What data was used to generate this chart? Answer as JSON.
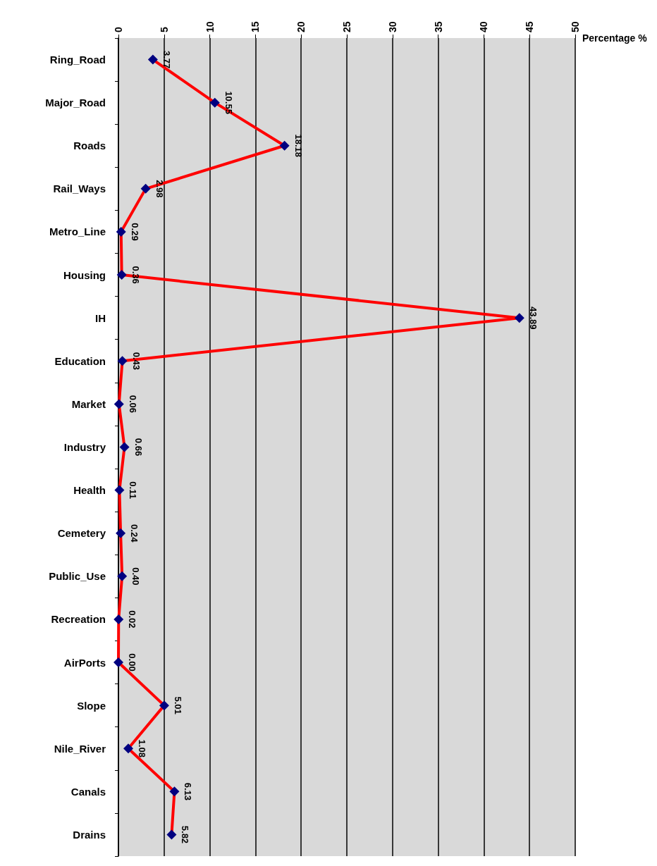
{
  "chart_data": {
    "type": "line",
    "orientation": "horizontal",
    "xlabel": "Percentage %",
    "categories": [
      "Ring_Road",
      "Major_Road",
      "Roads",
      "Rail_Ways",
      "Metro_Line",
      "Housing",
      "IH",
      "Education",
      "Market",
      "Industry",
      "Health",
      "Cemetery",
      "Public_Use",
      "Recreation",
      "AirPorts",
      "Slope",
      "Nile_River",
      "Canals",
      "Drains"
    ],
    "series": [
      {
        "color": "#ff0000",
        "values": [
          3.77,
          10.55,
          18.18,
          2.98,
          0.29,
          0.36,
          43.89,
          0.43,
          0.06,
          0.66,
          0.11,
          0.24,
          0.4,
          0.02,
          0.0,
          5.01,
          1.08,
          6.13,
          5.82
        ],
        "value_labels": [
          "3.77",
          "10.55",
          "18.18",
          "2.98",
          "0.29",
          "0.36",
          "43.89",
          "0.43",
          "0.06",
          "0.66",
          "0.11",
          "0.24",
          "0.40",
          "0.02",
          "0.00",
          "5.01",
          "1.08",
          "6.13",
          "5.82"
        ]
      }
    ],
    "xlim": [
      0,
      50
    ],
    "xticks": [
      0,
      5,
      10,
      15,
      20,
      25,
      30,
      35,
      40,
      45,
      50
    ],
    "grid": "x",
    "marker": "diamond",
    "line_style": "solid"
  }
}
